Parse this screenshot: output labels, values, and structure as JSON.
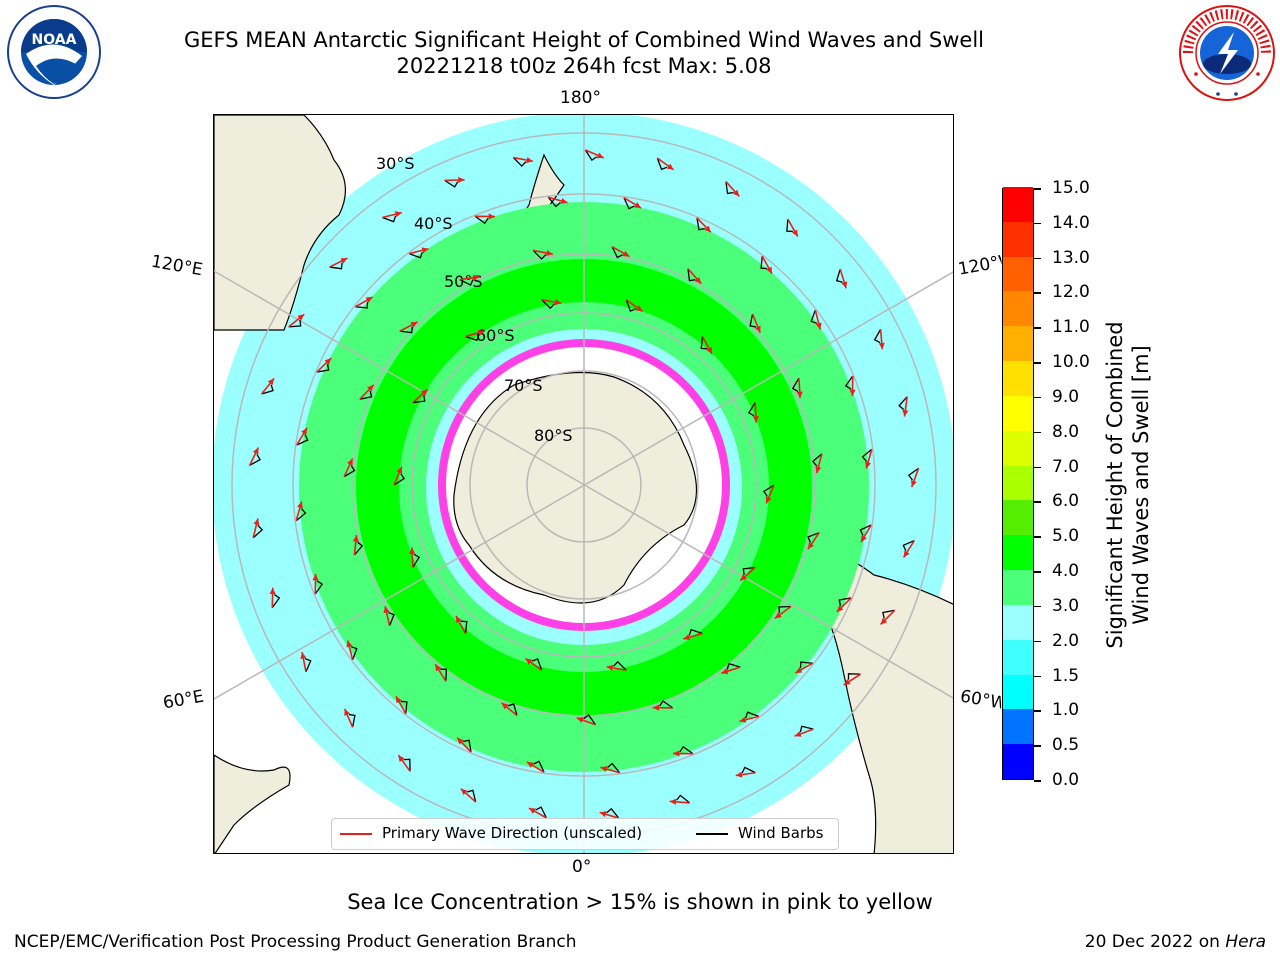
{
  "header": {
    "title_line1": "GEFS MEAN Antarctic Significant Height of Combined Wind Waves and Swell",
    "title_line2": "20221218 t00z 264h fcst   Max: 5.08"
  },
  "logos": {
    "left": {
      "name": "noaa-logo",
      "text": "NOAA"
    },
    "right": {
      "name": "nws-logo",
      "text": "NATIONAL WEATHER SERVICE"
    }
  },
  "map": {
    "projection": "south polar stereographic",
    "longitude_labels": {
      "top": "180°",
      "bottom": "0°",
      "left_upper": "120°E",
      "left_lower": "60°E",
      "right_upper": "120°W",
      "right_lower": "60°W"
    },
    "latitude_labels": [
      "30°S",
      "40°S",
      "50°S",
      "60°S",
      "70°S",
      "80°S"
    ],
    "colors": {
      "land": "#efeedc",
      "ocean_low": "#9cffff",
      "ocean_mid": "#4cff7a",
      "ocean_high": "#00f000",
      "sea_ice": "#ff40e6",
      "wave_arrow": "#e8201a",
      "wind_barb": "#000000",
      "grid": "#b8b8b8"
    }
  },
  "colorbar": {
    "label_line1": "Significant Height of Combined",
    "label_line2": "Wind Waves and Swell [m]",
    "ticks": [
      "0.0",
      "0.5",
      "1.0",
      "1.5",
      "2.0",
      "3.0",
      "4.0",
      "5.0",
      "6.0",
      "7.0",
      "8.0",
      "9.0",
      "10.0",
      "11.0",
      "12.0",
      "13.0",
      "14.0",
      "15.0"
    ],
    "colors": [
      "#0000ff",
      "#0073ff",
      "#00ffff",
      "#40ffff",
      "#9cffff",
      "#4cff7a",
      "#00ff00",
      "#55ee00",
      "#aaff00",
      "#ddff00",
      "#ffff00",
      "#ffe000",
      "#ffb000",
      "#ff8800",
      "#ff6000",
      "#ff3000",
      "#ff0000"
    ]
  },
  "legend": {
    "wave_label": "Primary Wave Direction (unscaled)",
    "wind_label": "Wind Barbs"
  },
  "note": "Sea Ice Concentration > 15% is shown in pink to yellow",
  "footer": {
    "left": "NCEP/EMC/Verification Post Processing Product Generation Branch",
    "right_date": "20 Dec 2022 on ",
    "right_host": "Hera"
  }
}
